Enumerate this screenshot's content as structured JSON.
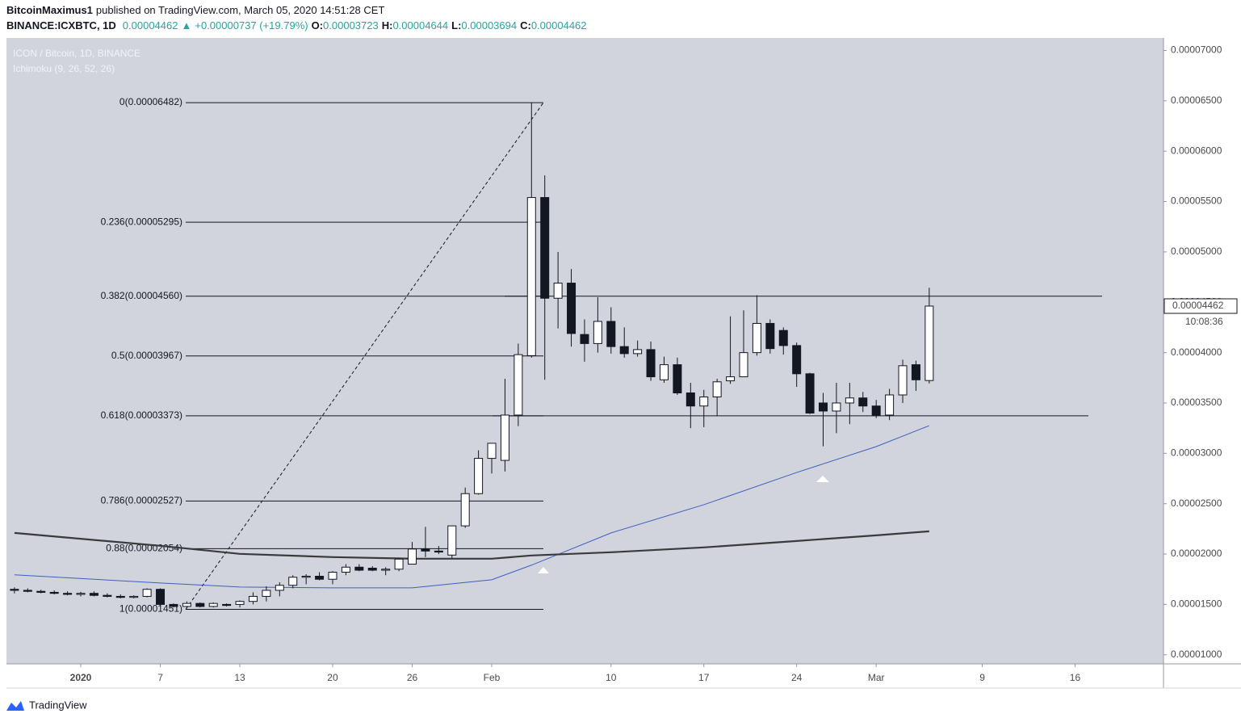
{
  "header": {
    "author": "BitcoinMaximus1",
    "published": "published on TradingView.com, March 05, 2020 14:51:28 CET",
    "symbol": "BINANCE:ICXBTC, 1D",
    "price": "0.00004462",
    "arrow": "▲",
    "change": "+0.00000737 (+19.79%)",
    "ohlc": [
      {
        "key": "O:",
        "value": "0.00003723"
      },
      {
        "key": "H:",
        "value": "0.00004644"
      },
      {
        "key": "L:",
        "value": "0.00003694"
      },
      {
        "key": "C:",
        "value": "0.00004462"
      }
    ]
  },
  "footer": {
    "brand": "TradingView"
  },
  "chart_data": {
    "type": "candlestick",
    "title": "ICON / Bitcoin, 1D, BINANCE",
    "subtitle": "Ichimoku (9, 26, 52, 26)",
    "up_color": "#ffffff",
    "down_color": "#131722",
    "x": [
      "2019-12-27",
      "2019-12-28",
      "2019-12-29",
      "2019-12-30",
      "2019-12-31",
      "2020-01-01",
      "2020-01-02",
      "2020-01-03",
      "2020-01-04",
      "2020-01-05",
      "2020-01-06",
      "2020-01-07",
      "2020-01-08",
      "2020-01-09",
      "2020-01-10",
      "2020-01-11",
      "2020-01-12",
      "2020-01-13",
      "2020-01-14",
      "2020-01-15",
      "2020-01-16",
      "2020-01-17",
      "2020-01-18",
      "2020-01-19",
      "2020-01-20",
      "2020-01-21",
      "2020-01-22",
      "2020-01-23",
      "2020-01-24",
      "2020-01-25",
      "2020-01-26",
      "2020-01-27",
      "2020-01-28",
      "2020-01-29",
      "2020-01-30",
      "2020-01-31",
      "2020-02-01",
      "2020-02-02",
      "2020-02-03",
      "2020-02-04",
      "2020-02-05",
      "2020-02-06",
      "2020-02-07",
      "2020-02-08",
      "2020-02-09",
      "2020-02-10",
      "2020-02-11",
      "2020-02-12",
      "2020-02-13",
      "2020-02-14",
      "2020-02-15",
      "2020-02-16",
      "2020-02-17",
      "2020-02-18",
      "2020-02-19",
      "2020-02-20",
      "2020-02-21",
      "2020-02-22",
      "2020-02-23",
      "2020-02-24",
      "2020-02-25",
      "2020-02-26",
      "2020-02-27",
      "2020-02-28",
      "2020-02-29",
      "2020-03-01",
      "2020-03-02",
      "2020-03-03",
      "2020-03-04",
      "2020-03-05"
    ],
    "open": [
      1.65e-05,
      1.64e-05,
      1.63e-05,
      1.62e-05,
      1.61e-05,
      1.6e-05,
      1.61e-05,
      1.59e-05,
      1.58e-05,
      1.57e-05,
      1.58e-05,
      1.65e-05,
      1.5e-05,
      1.48e-05,
      1.51e-05,
      1.48e-05,
      1.5e-05,
      1.5e-05,
      1.53e-05,
      1.58e-05,
      1.64e-05,
      1.69e-05,
      1.77e-05,
      1.78e-05,
      1.75e-05,
      1.82e-05,
      1.87e-05,
      1.86e-05,
      1.84e-05,
      1.85e-05,
      1.9e-05,
      2.05e-05,
      2.03e-05,
      1.99e-05,
      2.28e-05,
      2.6e-05,
      2.95e-05,
      2.93e-05,
      3.38e-05,
      3.97e-05,
      5.54e-05,
      4.54e-05,
      4.69e-05,
      4.18e-05,
      4.09e-05,
      4.31e-05,
      4.06e-05,
      3.99e-05,
      4.03e-05,
      3.73e-05,
      3.88e-05,
      3.6e-05,
      3.47e-05,
      3.56e-05,
      3.72e-05,
      3.76e-05,
      4e-05,
      4.29e-05,
      4.22e-05,
      4.07e-05,
      3.79e-05,
      3.5e-05,
      3.42e-05,
      3.5e-05,
      3.55e-05,
      3.47e-05,
      3.38e-05,
      3.58e-05,
      3.88e-05,
      3.723e-05
    ],
    "high": [
      1.67e-05,
      1.66e-05,
      1.645e-05,
      1.64e-05,
      1.63e-05,
      1.625e-05,
      1.63e-05,
      1.61e-05,
      1.6e-05,
      1.59e-05,
      1.66e-05,
      1.66e-05,
      1.51e-05,
      1.53e-05,
      1.52e-05,
      1.52e-05,
      1.51e-05,
      1.54e-05,
      1.62e-05,
      1.68e-05,
      1.72e-05,
      1.79e-05,
      1.8e-05,
      1.82e-05,
      1.83e-05,
      1.9e-05,
      1.9e-05,
      1.88e-05,
      1.87e-05,
      1.96e-05,
      2.12e-05,
      2.27e-05,
      2.08e-05,
      2.28e-05,
      2.66e-05,
      3.03e-05,
      3.08e-05,
      3.74e-05,
      4.09e-05,
      6.48e-05,
      5.76e-05,
      5e-05,
      4.83e-05,
      4.33e-05,
      4.55e-05,
      4.45e-05,
      4.25e-05,
      4.12e-05,
      4.11e-05,
      3.96e-05,
      3.95e-05,
      3.7e-05,
      3.63e-05,
      3.74e-05,
      4.36e-05,
      4.42e-05,
      4.57e-05,
      4.33e-05,
      4.25e-05,
      4.1e-05,
      3.8e-05,
      3.6e-05,
      3.7e-05,
      3.7e-05,
      3.61e-05,
      3.53e-05,
      3.64e-05,
      3.93e-05,
      3.92e-05,
      4.644e-05
    ],
    "low": [
      1.61e-05,
      1.62e-05,
      1.61e-05,
      1.6e-05,
      1.59e-05,
      1.58e-05,
      1.58e-05,
      1.57e-05,
      1.56e-05,
      1.56e-05,
      1.57e-05,
      1.48e-05,
      1.47e-05,
      1.46e-05,
      1.47e-05,
      1.47e-05,
      1.48e-05,
      1.47e-05,
      1.5e-05,
      1.53e-05,
      1.58e-05,
      1.66e-05,
      1.7e-05,
      1.74e-05,
      1.7e-05,
      1.79e-05,
      1.83e-05,
      1.83e-05,
      1.79e-05,
      1.83e-05,
      1.9e-05,
      1.97e-05,
      2e-05,
      1.96e-05,
      2.26e-05,
      2.59e-05,
      2.8e-05,
      2.82e-05,
      3.27e-05,
      3.95e-05,
      3.73e-05,
      4.24e-05,
      4.06e-05,
      3.91e-05,
      4e-05,
      3.99e-05,
      3.95e-05,
      3.96e-05,
      3.72e-05,
      3.7e-05,
      3.58e-05,
      3.25e-05,
      3.26e-05,
      3.37e-05,
      3.69e-05,
      3.76e-05,
      3.97e-05,
      3.99e-05,
      3.98e-05,
      3.66e-05,
      3.39e-05,
      3.07e-05,
      3.2e-05,
      3.29e-05,
      3.41e-05,
      3.35e-05,
      3.33e-05,
      3.5e-05,
      3.62e-05,
      3.694e-05
    ],
    "close": [
      1.64e-05,
      1.63e-05,
      1.62e-05,
      1.61e-05,
      1.6e-05,
      1.61e-05,
      1.59e-05,
      1.58e-05,
      1.57e-05,
      1.58e-05,
      1.65e-05,
      1.5e-05,
      1.48e-05,
      1.51e-05,
      1.48e-05,
      1.51e-05,
      1.49e-05,
      1.53e-05,
      1.58e-05,
      1.64e-05,
      1.69e-05,
      1.77e-05,
      1.78e-05,
      1.75e-05,
      1.82e-05,
      1.87e-05,
      1.84e-05,
      1.84e-05,
      1.85e-05,
      1.95e-05,
      2.05e-05,
      2.03e-05,
      2.02e-05,
      2.28e-05,
      2.6e-05,
      2.95e-05,
      3.1e-05,
      3.38e-05,
      3.98e-05,
      5.54e-05,
      4.54e-05,
      4.69e-05,
      4.19e-05,
      4.09e-05,
      4.31e-05,
      4.06e-05,
      3.99e-05,
      4.03e-05,
      3.76e-05,
      3.88e-05,
      3.6e-05,
      3.47e-05,
      3.56e-05,
      3.71e-05,
      3.76e-05,
      4e-05,
      4.29e-05,
      4.04e-05,
      4.07e-05,
      3.79e-05,
      3.4e-05,
      3.42e-05,
      3.5e-05,
      3.55e-05,
      3.47e-05,
      3.38e-05,
      3.58e-05,
      3.87e-05,
      3.73e-05,
      4.462e-05
    ],
    "indicators": [
      {
        "color": "#3f5fbf",
        "width": 1,
        "x": [
          "2019-12-27",
          "2020-01-07",
          "2020-01-13",
          "2020-01-20",
          "2020-01-26",
          "2020-02-01",
          "2020-02-04",
          "2020-02-10",
          "2020-02-17",
          "2020-02-24",
          "2020-03-01",
          "2020-03-05"
        ],
        "values": [
          1.794e-05,
          1.713e-05,
          1.673e-05,
          1.665e-05,
          1.665e-05,
          1.745e-05,
          1.89e-05,
          2.21e-05,
          2.49e-05,
          2.81e-05,
          3.067e-05,
          3.275e-05
        ]
      },
      {
        "color": "#3a3a3a",
        "width": 2.2,
        "x": [
          "2019-12-27",
          "2020-01-07",
          "2020-01-13",
          "2020-01-20",
          "2020-01-26",
          "2020-02-01",
          "2020-02-04",
          "2020-02-10",
          "2020-02-17",
          "2020-02-24",
          "2020-03-01",
          "2020-03-05"
        ],
        "values": [
          2.21e-05,
          2.082e-05,
          2.002e-05,
          1.97e-05,
          1.954e-05,
          1.954e-05,
          1.986e-05,
          2.018e-05,
          2.066e-05,
          2.13e-05,
          2.186e-05,
          2.226e-05
        ]
      }
    ],
    "fib_levels": [
      {
        "label": "0(0.00006482)",
        "value": 6.482e-05
      },
      {
        "label": "0.236(0.00005295)",
        "value": 5.295e-05
      },
      {
        "label": "0.382(0.00004560)",
        "value": 4.56e-05
      },
      {
        "label": "0.5(0.00003967)",
        "value": 3.967e-05
      },
      {
        "label": "0.618(0.00003373)",
        "value": 3.373e-05
      },
      {
        "label": "0.786(0.00002527)",
        "value": 2.527e-05
      },
      {
        "label": "0.88(0.00002054)",
        "value": 2.054e-05
      },
      {
        "label": "1(0.00001451)",
        "value": 1.451e-05
      }
    ],
    "horizontal_lines": [
      4.56e-05,
      3.373e-05
    ],
    "countdown": "10:08:36",
    "ylim": [
      9.1e-06,
      7.1e-05
    ],
    "yticks": [
      {
        "value": 1e-05,
        "label": "0.00001000"
      },
      {
        "value": 1.5e-05,
        "label": "0.00001500"
      },
      {
        "value": 2e-05,
        "label": "0.00002000"
      },
      {
        "value": 2.5e-05,
        "label": "0.00002500"
      },
      {
        "value": 3e-05,
        "label": "0.00003000"
      },
      {
        "value": 3.5e-05,
        "label": "0.00003500"
      },
      {
        "value": 4e-05,
        "label": "0.00004000"
      },
      {
        "value": 4.5e-05,
        "label": "0.00004500"
      },
      {
        "value": 5e-05,
        "label": "0.00005000"
      },
      {
        "value": 5.5e-05,
        "label": "0.00005500"
      },
      {
        "value": 6e-05,
        "label": "0.00006000"
      },
      {
        "value": 6.5e-05,
        "label": "0.00006500"
      },
      {
        "value": 7e-05,
        "label": "0.00007000"
      }
    ],
    "xlim": [
      "2019-12-26",
      "2020-03-22"
    ],
    "xticks": [
      {
        "value": "2020-01-01",
        "label": "2020"
      },
      {
        "value": "2020-01-07",
        "label": "7"
      },
      {
        "value": "2020-01-13",
        "label": "13"
      },
      {
        "value": "2020-01-20",
        "label": "20"
      },
      {
        "value": "2020-01-26",
        "label": "26"
      },
      {
        "value": "2020-02-01",
        "label": "Feb"
      },
      {
        "value": "2020-02-10",
        "label": "10"
      },
      {
        "value": "2020-02-17",
        "label": "17"
      },
      {
        "value": "2020-02-24",
        "label": "24"
      },
      {
        "value": "2020-03-01",
        "label": "Mar"
      },
      {
        "value": "2020-03-09",
        "label": "9"
      },
      {
        "value": "2020-03-16",
        "label": "16"
      }
    ],
    "grid": false
  }
}
